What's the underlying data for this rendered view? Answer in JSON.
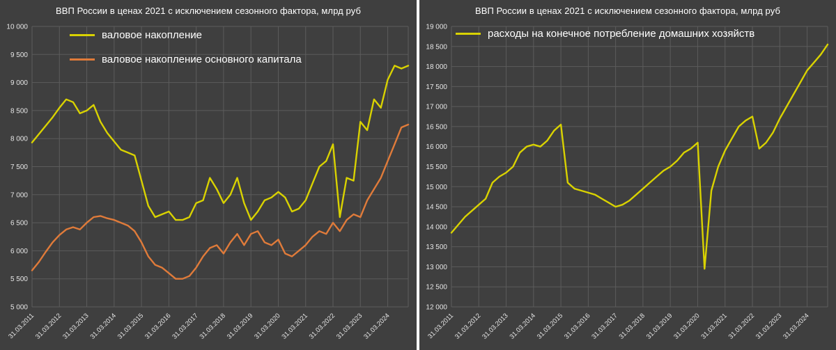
{
  "theme": {
    "panel_bg": "#3f3f3f",
    "grid": "#5c5c5c",
    "title_text": "#ffffff",
    "tick_text": "#e6e6e6",
    "divider": "#ffffff"
  },
  "chart_data": [
    {
      "type": "line",
      "title": "ВВП России в ценах 2021 с исключением сезонного фактора, млрд руб",
      "x_tick_labels": [
        "31.03.2011",
        "31.03.2012",
        "31.03.2013",
        "31.03.2014",
        "31.03.2015",
        "31.03.2016",
        "31.03.2017",
        "31.03.2018",
        "31.03.2019",
        "31.03.2020",
        "31.03.2021",
        "31.03.2022",
        "31.03.2023",
        "31.03.2024"
      ],
      "points_per_x_tick": 4,
      "ylim": [
        5000,
        10000
      ],
      "ytick_step": 500,
      "ytick_labels": [
        "5 000",
        "5 500",
        "6 000",
        "6 500",
        "7 000",
        "7 500",
        "8 000",
        "8 500",
        "9 000",
        "9 500",
        "10 000"
      ],
      "grid": true,
      "legend_position": "top-left-inside",
      "series": [
        {
          "name": "валовое накопление",
          "color": "#d9d200",
          "values": [
            7930,
            8080,
            8230,
            8380,
            8550,
            8700,
            8650,
            8450,
            8500,
            8600,
            8300,
            8100,
            7950,
            7800,
            7750,
            7700,
            7250,
            6800,
            6600,
            6650,
            6700,
            6550,
            6550,
            6600,
            6850,
            6900,
            7300,
            7100,
            6850,
            7000,
            7300,
            6850,
            6550,
            6700,
            6900,
            6950,
            7050,
            6950,
            6700,
            6750,
            6900,
            7200,
            7500,
            7600,
            7900,
            6600,
            7300,
            7250,
            8300,
            8150,
            8700,
            8550,
            9050,
            9300,
            9250,
            9300
          ]
        },
        {
          "name": "валовое накопление основного капитала",
          "color": "#e07b3a",
          "values": [
            5650,
            5800,
            5980,
            6150,
            6280,
            6380,
            6420,
            6380,
            6500,
            6600,
            6620,
            6580,
            6550,
            6500,
            6450,
            6350,
            6150,
            5900,
            5750,
            5700,
            5600,
            5500,
            5500,
            5550,
            5700,
            5900,
            6050,
            6100,
            5950,
            6150,
            6300,
            6100,
            6300,
            6350,
            6150,
            6100,
            6200,
            5950,
            5900,
            6000,
            6100,
            6250,
            6350,
            6300,
            6500,
            6350,
            6550,
            6650,
            6600,
            6900,
            7100,
            7300,
            7600,
            7900,
            8200,
            8250
          ]
        }
      ]
    },
    {
      "type": "line",
      "title": "ВВП России в ценах 2021 с исключением сезонного фактора, млрд руб",
      "x_tick_labels": [
        "31.03.2011",
        "31.03.2012",
        "31.03.2013",
        "31.03.2014",
        "31.03.2015",
        "31.03.2016",
        "31.03.2017",
        "31.03.2018",
        "31.03.2019",
        "31.03.2020",
        "31.03.2021",
        "31.03.2022",
        "31.03.2023",
        "31.03.2024"
      ],
      "points_per_x_tick": 4,
      "ylim": [
        12000,
        19000
      ],
      "ytick_step": 500,
      "ytick_labels": [
        "12 000",
        "12 500",
        "13 000",
        "13 500",
        "14 000",
        "14 500",
        "15 000",
        "15 500",
        "16 000",
        "16 500",
        "17 000",
        "17 500",
        "18 000",
        "18 500",
        "19 000"
      ],
      "grid": true,
      "legend_position": "top-left-inside",
      "series": [
        {
          "name": "расходы на конечное потребление домашних хозяйств",
          "color": "#d9d200",
          "values": [
            13850,
            14050,
            14250,
            14400,
            14550,
            14700,
            15100,
            15250,
            15350,
            15500,
            15850,
            16000,
            16050,
            16000,
            16150,
            16400,
            16550,
            15100,
            14950,
            14900,
            14850,
            14800,
            14700,
            14600,
            14500,
            14550,
            14650,
            14800,
            14950,
            15100,
            15250,
            15400,
            15500,
            15650,
            15850,
            15950,
            16100,
            12950,
            14900,
            15500,
            15900,
            16200,
            16500,
            16650,
            16750,
            15950,
            16100,
            16350,
            16700,
            17000,
            17300,
            17600,
            17900,
            18100,
            18300,
            18550
          ]
        }
      ]
    }
  ]
}
